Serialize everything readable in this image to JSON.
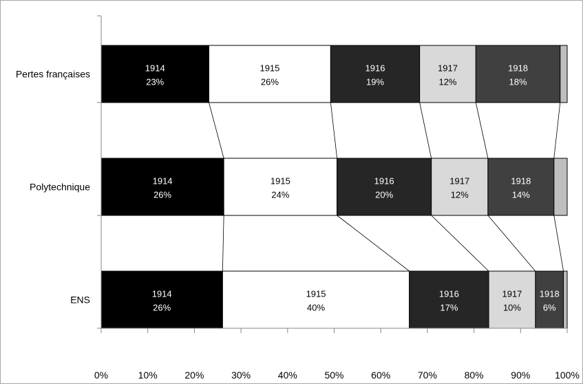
{
  "chart_data": {
    "type": "bar",
    "orientation": "horizontal",
    "stacked": "100%",
    "categories": [
      "Pertes françaises",
      "Polytechnique",
      "ENS"
    ],
    "series": [
      {
        "name": "1914",
        "values": [
          23,
          26,
          26
        ],
        "labels": [
          "1914\n23%",
          "1914\n26%",
          "1914\n26%"
        ]
      },
      {
        "name": "1915",
        "values": [
          26,
          24,
          40
        ],
        "labels": [
          "1915\n26%",
          "1915\n24%",
          "1915\n40%"
        ]
      },
      {
        "name": "1916",
        "values": [
          19,
          20,
          17
        ],
        "labels": [
          "1916\n19%",
          "1916\n20%",
          "1916\n17%"
        ]
      },
      {
        "name": "1917",
        "values": [
          12,
          12,
          10
        ],
        "labels": [
          "1917\n12%",
          "1917\n12%",
          "1917\n10%"
        ]
      },
      {
        "name": "1918",
        "values": [
          18,
          14,
          6
        ],
        "labels": [
          "1918\n18%",
          "1918\n14%",
          "1918\n6%"
        ]
      },
      {
        "name": "",
        "values": [
          1.5,
          2.8,
          0.8
        ],
        "labels": [
          "",
          "",
          ""
        ]
      }
    ],
    "xticks": [
      "0%",
      "10%",
      "20%",
      "30%",
      "40%",
      "50%",
      "60%",
      "70%",
      "80%",
      "90%",
      "100%"
    ],
    "xlim": [
      0,
      100
    ],
    "title": "",
    "xlabel": "",
    "ylabel": "",
    "grid": false,
    "legend": "none",
    "series_lines": true,
    "colors": {
      "segments": [
        "#000000",
        "#ffffff",
        "#262626",
        "#d9d9d9",
        "#404040",
        "#bfbfbf"
      ],
      "label_colors": [
        "#ffffff",
        "#000000",
        "#ffffff",
        "#000000",
        "#ffffff",
        "#000000"
      ],
      "axis": "#868686",
      "outline": "#000000",
      "text": "#000000"
    }
  }
}
